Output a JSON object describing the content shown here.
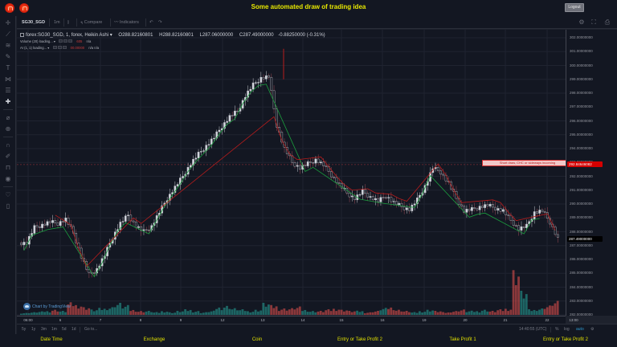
{
  "window": {
    "title": "Some automated draw of trading idea",
    "logout_label": "Logout",
    "title_color": "#e8e800"
  },
  "toolbar": {
    "symbol": "SG30_SGD",
    "interval": "1m",
    "bar_style_icon": "candles-icon",
    "compare_label": "Compare",
    "indicators_label": "Indicators",
    "undo_icon": "undo-icon",
    "redo_icon": "redo-icon",
    "right_icons": [
      "settings-icon",
      "fullscreen-icon",
      "camera-icon"
    ]
  },
  "left_tools": [
    "crosshair-icon",
    "trend-line-icon",
    "pitchfork-icon",
    "brush-icon",
    "text-icon",
    "pattern-icon",
    "measure-icon",
    "add-icon",
    "ruler-icon",
    "zoom-icon",
    "magnet-icon",
    "lock-drawing-icon",
    "unlock-icon",
    "eye-icon",
    "favorite-icon",
    "trash-icon"
  ],
  "legend": {
    "series_title": "forex:SG30_SGD, 1, forex, Heikin Ashi",
    "open": "O288.82160801",
    "high": "H288.82160801",
    "low": "L287.06000000",
    "close": "C287.49000000",
    "change": "-0.88250000 (-0.31%)",
    "indicators": [
      {
        "label": "Volume (20) loading...",
        "value_red": "605",
        "values": "n/a"
      },
      {
        "label": "AI (1, 1) loading...",
        "value_red": "00.00000",
        "values": "n/a  n/a"
      }
    ],
    "loading_label": "Loading"
  },
  "price_axis": {
    "labels": [
      "302.00000000",
      "301.00000000",
      "300.00000000",
      "299.00000000",
      "298.00000000",
      "297.00000000",
      "296.00000000",
      "295.00000000",
      "294.00000000",
      "293.00000000",
      "292.00000000",
      "291.00000000",
      "290.00000000",
      "289.00000000",
      "288.00000000",
      "287.00000000",
      "286.00000000",
      "285.00000000",
      "284.00000000",
      "283.00000000",
      "282.00000000"
    ],
    "line_tag": {
      "value": "292.84646082",
      "color": "#d50000"
    },
    "last_tag": {
      "value": "287.49000000",
      "color": "#000000"
    }
  },
  "time_axis": {
    "labels": [
      "06:00",
      "6",
      "7",
      "8",
      "9",
      "12",
      "13",
      "14",
      "15",
      "16",
      "19",
      "20",
      "21",
      "22",
      "13:00"
    ]
  },
  "bottom_bar": {
    "ranges": [
      "5y",
      "1y",
      "3m",
      "1m",
      "5d",
      "1d"
    ],
    "goto_label": "Go to...",
    "clock": "14:40:55 (UTC)",
    "percent_label": "%",
    "log_label": "log",
    "auto_label": "auto",
    "settings_icon": "gear-icon"
  },
  "annotation": {
    "label": "Short draw, CHC or sideways incoming",
    "close_label": "x",
    "price": 292.84646082
  },
  "watermark": "Chart by TradingView",
  "footer": {
    "items": [
      "Date Time",
      "Exchange",
      "Coin",
      "Entry or Take Profit 2",
      "Take Profit 1",
      "Entry or Take Profit 2"
    ]
  },
  "colors": {
    "up_candle": "#d1d4dc",
    "down_candle": "#131722",
    "stop_up": "#1b9e3e",
    "stop_down": "#b71c1c",
    "vol_up": "#26a69a",
    "vol_down": "#ef5350"
  },
  "chart_data": {
    "type": "line",
    "title": "forex:SG30_SGD, 1, forex, Heikin Ashi",
    "ylim": [
      282,
      302
    ],
    "x": [
      "06:00",
      "6",
      "7",
      "8",
      "9",
      "12",
      "13",
      "14",
      "15",
      "16",
      "19",
      "20",
      "21",
      "22",
      "13:00"
    ],
    "series": [
      {
        "name": "price_path_close",
        "values": [
          287.2,
          288.3,
          288.5,
          288.7,
          288.6,
          288.9,
          287.9,
          286.2,
          284.9,
          285.3,
          286.3,
          287.6,
          288.6,
          289.2,
          288.4,
          288.0,
          288.4,
          289.4,
          290.4,
          291.2,
          292.0,
          292.9,
          293.6,
          294.2,
          294.8,
          295.6,
          296.3,
          296.7,
          297.8,
          298.6,
          299.1,
          299.2,
          295.7,
          294.0,
          293.0,
          292.6,
          292.9,
          293.2,
          292.8,
          292.1,
          291.4,
          290.8,
          290.4,
          290.9,
          290.5,
          290.2,
          290.6,
          290.1,
          289.8,
          289.6,
          290.3,
          291.3,
          292.6,
          292.3,
          291.5,
          290.4,
          289.5,
          289.6,
          289.8,
          289.9,
          289.7,
          289.5,
          288.8,
          288.2,
          288.4,
          289.4,
          289.5,
          288.7,
          287.5
        ]
      },
      {
        "name": "volume_relative",
        "values": [
          0.15,
          0.2,
          0.25,
          0.3,
          0.4,
          0.3,
          0.9,
          0.8,
          0.6,
          0.4,
          0.5,
          0.6,
          0.9,
          0.7,
          0.4,
          0.3,
          0.3,
          0.2,
          0.3,
          0.2,
          0.3,
          0.4,
          0.3,
          0.2,
          0.3,
          0.6,
          0.7,
          0.5,
          0.4,
          0.3,
          0.4,
          0.9,
          0.7,
          0.5,
          0.5,
          0.6,
          0.4,
          0.3,
          0.3,
          0.4,
          0.5,
          0.4,
          0.3,
          0.3,
          0.2,
          0.3,
          0.5,
          0.6,
          0.4,
          0.3,
          0.2,
          0.3,
          0.4,
          0.3,
          0.2,
          0.3,
          0.4,
          0.3,
          0.3,
          0.4,
          0.3,
          0.4,
          0.5,
          3.5,
          1.8,
          0.4,
          0.5,
          0.7,
          1.0
        ]
      }
    ],
    "annotations": [
      "Short draw, CHC or sideways incoming @ 292.84646082"
    ]
  }
}
